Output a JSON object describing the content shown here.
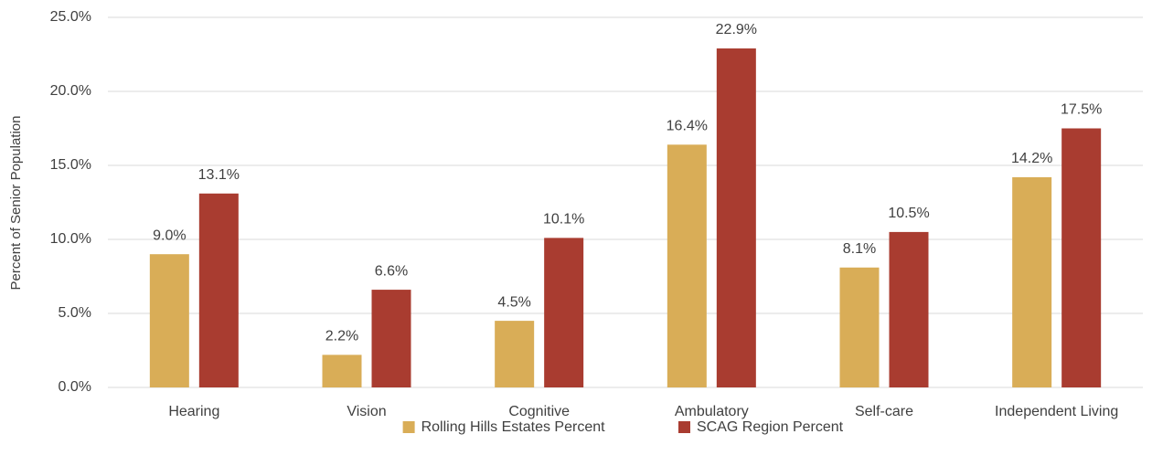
{
  "chart_data": {
    "type": "bar",
    "y_axis_label": "Percent of Senior Population",
    "categories": [
      "Hearing",
      "Vision",
      "Cognitive",
      "Ambulatory",
      "Self-care",
      "Independent Living"
    ],
    "series": [
      {
        "name": "Rolling Hills Estates Percent",
        "color": "#d9ad57",
        "values": [
          9.0,
          2.2,
          4.5,
          16.4,
          8.1,
          14.2
        ],
        "value_labels": [
          "9.0%",
          "2.2%",
          "4.5%",
          "16.4%",
          "8.1%",
          "14.2%"
        ]
      },
      {
        "name": "SCAG Region Percent",
        "color": "#a93c30",
        "values": [
          13.1,
          6.6,
          10.1,
          22.9,
          10.5,
          17.5
        ],
        "value_labels": [
          "13.1%",
          "6.6%",
          "10.1%",
          "22.9%",
          "10.5%",
          "17.5%"
        ]
      }
    ],
    "ylim": [
      0,
      25
    ],
    "yticks": [
      {
        "value": 0,
        "label": "0.0%"
      },
      {
        "value": 5,
        "label": "5.0%"
      },
      {
        "value": 10,
        "label": "10.0%"
      },
      {
        "value": 15,
        "label": "15.0%"
      },
      {
        "value": 20,
        "label": "20.0%"
      },
      {
        "value": 25,
        "label": "25.0%"
      }
    ],
    "grid": true,
    "legend": "bottom"
  }
}
